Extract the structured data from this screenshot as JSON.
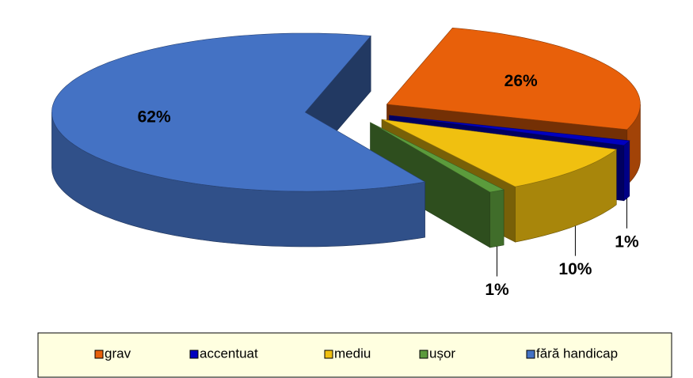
{
  "chart_data": {
    "type": "pie",
    "categories": [
      "grav",
      "accentuat",
      "mediu",
      "ușor",
      "fără handicap"
    ],
    "values": [
      26,
      1,
      10,
      1,
      62
    ],
    "value_labels": [
      "26%",
      "1%",
      "10%",
      "1%",
      "62%"
    ],
    "colors": [
      "#e8600a",
      "#0000c0",
      "#f0c010",
      "#5b9b3c",
      "#4472c4"
    ],
    "legend": "bottom"
  }
}
